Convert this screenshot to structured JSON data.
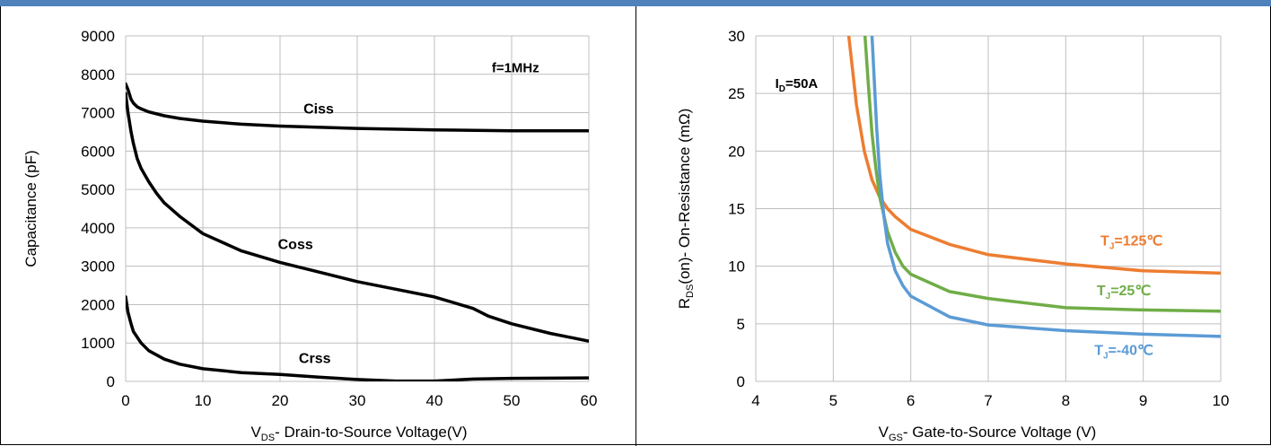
{
  "chart_data": [
    {
      "type": "line",
      "xlabel": "- Drain-to-Source Voltage(V)",
      "xlabel_main": "V",
      "xlabel_sub": "DS",
      "ylabel": "Capacitance (pF)",
      "xlim": [
        0,
        60
      ],
      "ylim": [
        0,
        9000
      ],
      "x_ticks": [
        0,
        10,
        20,
        30,
        40,
        50,
        60
      ],
      "y_ticks": [
        0,
        1000,
        2000,
        3000,
        4000,
        5000,
        6000,
        7000,
        8000,
        9000
      ],
      "grid": true,
      "annotation": "f=1MHz",
      "series": [
        {
          "name": "Ciss",
          "color": "#000000",
          "x": [
            0,
            0.3,
            0.7,
            1,
            1.5,
            2,
            3,
            5,
            7,
            10,
            15,
            20,
            30,
            40,
            50,
            60
          ],
          "y": [
            7750,
            7600,
            7350,
            7250,
            7150,
            7100,
            7020,
            6920,
            6850,
            6780,
            6700,
            6650,
            6590,
            6550,
            6530,
            6530
          ]
        },
        {
          "name": "Coss",
          "color": "#000000",
          "x": [
            0,
            0.3,
            0.7,
            1,
            1.5,
            2,
            3,
            4,
            5,
            7,
            10,
            15,
            20,
            25,
            30,
            35,
            40,
            45,
            47,
            50,
            55,
            60
          ],
          "y": [
            7500,
            7000,
            6500,
            6200,
            5800,
            5550,
            5200,
            4900,
            4650,
            4300,
            3850,
            3400,
            3100,
            2850,
            2600,
            2400,
            2200,
            1900,
            1700,
            1500,
            1250,
            1050
          ]
        },
        {
          "name": "Crss",
          "color": "#000000",
          "x": [
            0,
            0.3,
            0.7,
            1,
            1.5,
            2,
            3,
            5,
            7,
            10,
            15,
            20,
            25,
            30,
            35,
            40,
            45,
            50,
            60
          ],
          "y": [
            2200,
            1800,
            1500,
            1300,
            1150,
            1000,
            800,
            580,
            450,
            330,
            230,
            180,
            110,
            50,
            10,
            10,
            60,
            80,
            90
          ]
        }
      ]
    },
    {
      "type": "line",
      "xlabel": "- Gate-to-Source Voltage (V)",
      "xlabel_main": "V",
      "xlabel_sub": "GS",
      "ylabel": "(on)- On-Resistance (mΩ)",
      "ylabel_main": "R",
      "ylabel_sub": "DS",
      "xlim": [
        4,
        10
      ],
      "ylim": [
        0,
        30
      ],
      "x_ticks": [
        4,
        5,
        6,
        7,
        8,
        9,
        10
      ],
      "y_ticks": [
        0,
        5,
        10,
        15,
        20,
        25,
        30
      ],
      "grid": true,
      "annotation_main": "I",
      "annotation_sub": "D",
      "annotation_rest": "=50A",
      "series": [
        {
          "name": "=125℃",
          "name_main": "T",
          "name_sub": "J",
          "color": "#ed7d31",
          "x": [
            5.2,
            5.3,
            5.4,
            5.5,
            5.6,
            5.7,
            5.8,
            6.0,
            6.5,
            7.0,
            8.0,
            9.0,
            10.0
          ],
          "y": [
            30,
            24,
            20,
            17.5,
            16,
            15,
            14.3,
            13.2,
            11.9,
            11.0,
            10.2,
            9.6,
            9.4
          ]
        },
        {
          "name": "=25℃",
          "name_main": "T",
          "name_sub": "J",
          "color": "#70ad47",
          "x": [
            5.41,
            5.45,
            5.5,
            5.55,
            5.6,
            5.7,
            5.8,
            5.9,
            6.0,
            6.5,
            7.0,
            8.0,
            9.0,
            10.0
          ],
          "y": [
            30,
            26,
            21.5,
            18.5,
            16,
            13,
            11.2,
            10,
            9.3,
            7.8,
            7.2,
            6.4,
            6.2,
            6.1
          ]
        },
        {
          "name": "=-40℃",
          "name_main": "T",
          "name_sub": "J",
          "color": "#5b9bd5",
          "x": [
            5.5,
            5.53,
            5.56,
            5.6,
            5.65,
            5.7,
            5.8,
            5.9,
            6.0,
            6.5,
            7.0,
            8.0,
            9.0,
            10.0
          ],
          "y": [
            30,
            26,
            22,
            18,
            14.5,
            12,
            9.6,
            8.3,
            7.4,
            5.6,
            4.9,
            4.4,
            4.1,
            3.9
          ]
        }
      ]
    }
  ]
}
